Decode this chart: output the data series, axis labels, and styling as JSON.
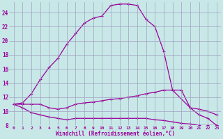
{
  "background_color": "#c8e8e8",
  "grid_color": "#a0a0c0",
  "line_color": "#990099",
  "xlabel": "Windchill (Refroidissement éolien,°C)",
  "xlim": [
    -0.5,
    23.5
  ],
  "ylim": [
    8,
    25.5
  ],
  "yticks": [
    8,
    10,
    12,
    14,
    16,
    18,
    20,
    22,
    24
  ],
  "xticks": [
    0,
    1,
    2,
    3,
    4,
    5,
    6,
    7,
    8,
    9,
    10,
    11,
    12,
    13,
    14,
    15,
    16,
    17,
    18,
    19,
    20,
    21,
    22,
    23
  ],
  "line1_x": [
    0,
    1,
    2,
    3,
    4,
    5,
    6,
    7,
    8,
    9,
    10,
    11,
    12,
    13,
    14,
    15,
    16,
    17,
    18,
    20,
    21,
    22,
    23
  ],
  "line1_y": [
    11.0,
    11.2,
    12.5,
    14.5,
    16.2,
    17.5,
    19.5,
    21.0,
    22.5,
    23.2,
    23.5,
    25.0,
    25.2,
    25.2,
    25.0,
    23.0,
    22.0,
    18.5,
    13.0,
    10.5,
    9.5,
    9.0,
    8.0
  ],
  "line2_x": [
    0,
    1,
    2,
    3,
    4,
    5,
    6,
    7,
    8,
    9,
    10,
    11,
    12,
    13,
    14,
    15,
    16,
    17,
    18,
    19,
    20,
    21,
    22,
    23
  ],
  "line2_y": [
    11.0,
    11.0,
    11.0,
    11.0,
    10.5,
    10.3,
    10.5,
    11.0,
    11.2,
    11.3,
    11.5,
    11.7,
    11.8,
    12.0,
    12.2,
    12.5,
    12.7,
    13.0,
    13.0,
    13.0,
    10.5,
    10.3,
    10.0,
    9.5
  ],
  "line3_x": [
    0,
    1,
    2,
    3,
    4,
    5,
    6,
    7,
    8,
    9,
    10,
    11,
    12,
    13,
    14,
    15,
    16,
    17,
    18,
    19,
    20,
    21,
    22,
    23
  ],
  "line3_y": [
    11.0,
    10.5,
    9.8,
    9.5,
    9.2,
    9.0,
    8.8,
    9.0,
    9.0,
    9.0,
    9.0,
    9.0,
    9.0,
    9.0,
    9.0,
    9.0,
    8.8,
    8.7,
    8.5,
    8.3,
    8.2,
    8.0,
    8.0,
    8.0
  ]
}
